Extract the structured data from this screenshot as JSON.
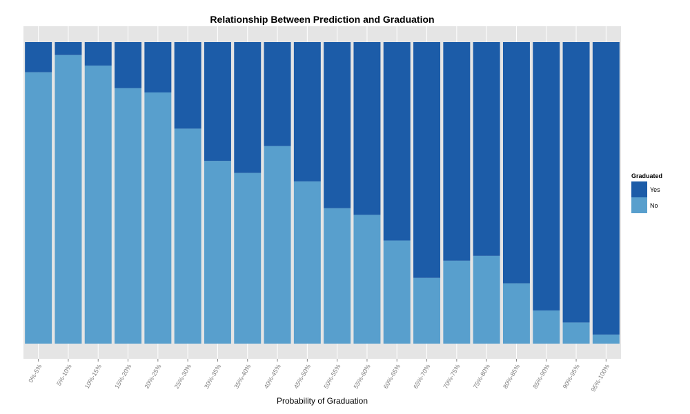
{
  "chart_data": {
    "type": "bar",
    "stacked": true,
    "normalized": true,
    "title": "Relationship Between Prediction and Graduation",
    "xlabel": "Probability of Graduation",
    "ylabel": "",
    "ylim": [
      0,
      1
    ],
    "categories": [
      "0%-5%",
      "5%-10%",
      "10%-15%",
      "15%-20%",
      "20%-25%",
      "25%-30%",
      "30%-35%",
      "35%-40%",
      "40%-45%",
      "45%-50%",
      "50%-55%",
      "55%-60%",
      "60%-65%",
      "65%-70%",
      "70%-75%",
      "75%-80%",
      "80%-85%",
      "85%-90%",
      "90%-95%",
      "95%-100%"
    ],
    "series": [
      {
        "name": "No",
        "color": "#589fcd",
        "values": [
          0.9,
          0.957,
          0.922,
          0.847,
          0.833,
          0.713,
          0.606,
          0.566,
          0.655,
          0.538,
          0.449,
          0.427,
          0.342,
          0.218,
          0.275,
          0.291,
          0.2,
          0.11,
          0.07,
          0.03
        ]
      },
      {
        "name": "Yes",
        "color": "#1c5ca8",
        "values": [
          0.1,
          0.043,
          0.078,
          0.153,
          0.167,
          0.287,
          0.394,
          0.434,
          0.345,
          0.462,
          0.551,
          0.573,
          0.658,
          0.782,
          0.725,
          0.709,
          0.8,
          0.89,
          0.93,
          0.97
        ]
      }
    ],
    "legend": {
      "title": "Graduated",
      "position": "right",
      "items": [
        "Yes",
        "No"
      ]
    },
    "grid": true,
    "y_ticks_shown": false
  }
}
